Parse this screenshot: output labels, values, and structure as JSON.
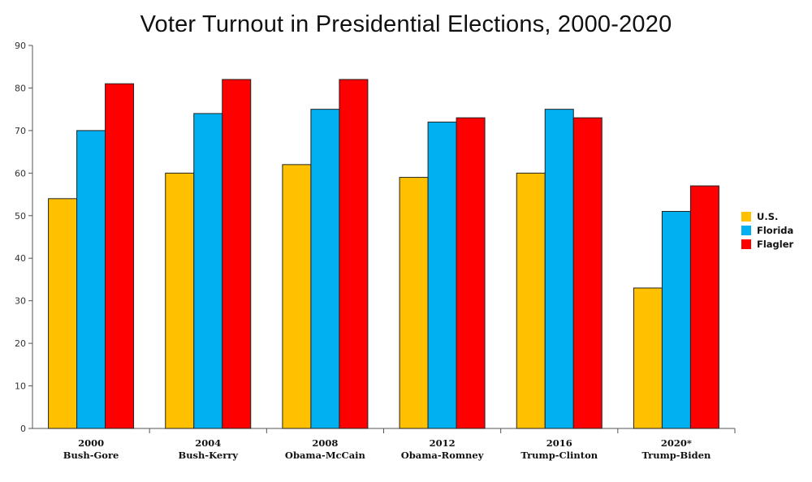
{
  "chart_data": {
    "type": "bar",
    "title": "Voter Turnout in Presidential Elections, 2000-2020",
    "xlabel": "",
    "ylabel": "",
    "ylim": [
      0,
      90
    ],
    "yticks": [
      0,
      10,
      20,
      30,
      40,
      50,
      60,
      70,
      80,
      90
    ],
    "grid": false,
    "legend_position": "right",
    "categories": [
      [
        "2000",
        "Bush-Gore"
      ],
      [
        "2004",
        "Bush-Kerry"
      ],
      [
        "2008",
        "Obama-McCain"
      ],
      [
        "2012",
        "Obama-Romney"
      ],
      [
        "2016",
        "Trump-Clinton"
      ],
      [
        "2020*",
        "Trump-Biden"
      ]
    ],
    "series": [
      {
        "name": "U.S.",
        "color": "#FFC000",
        "values": [
          54,
          60,
          62,
          59,
          60,
          33
        ]
      },
      {
        "name": "Florida",
        "color": "#00B0F0",
        "values": [
          70,
          74,
          75,
          72,
          75,
          51
        ]
      },
      {
        "name": "Flagler",
        "color": "#FF0000",
        "values": [
          81,
          82,
          82,
          73,
          73,
          57
        ]
      }
    ]
  }
}
